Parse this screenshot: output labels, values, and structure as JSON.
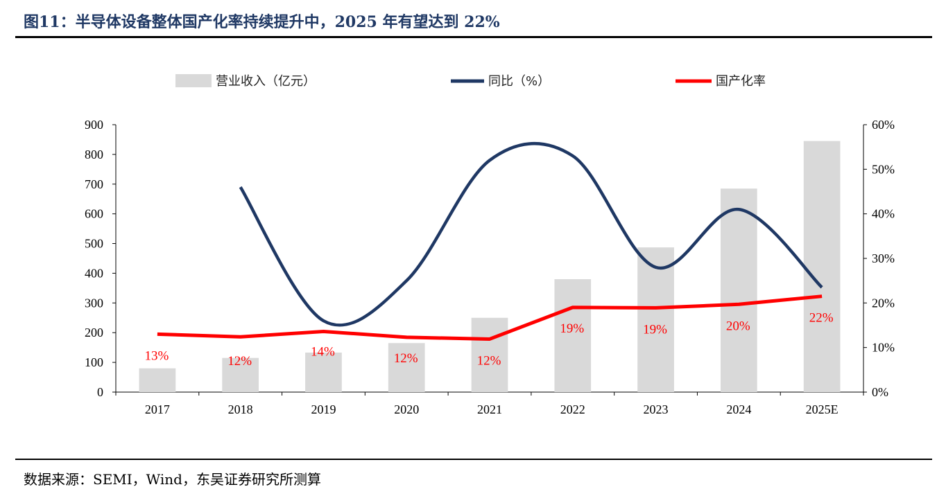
{
  "header": {
    "title": "图11：半导体设备整体国产化率持续提升中，2025 年有望达到 22%"
  },
  "footer": {
    "source": "数据来源：SEMI，Wind，东吴证券研究所测算"
  },
  "colors": {
    "bar": "#d9d9d9",
    "yoy": "#1f3864",
    "localization": "#ff0000",
    "title": "#1f3864"
  },
  "chart_data": {
    "type": "bar",
    "categories": [
      "2017",
      "2018",
      "2019",
      "2020",
      "2021",
      "2022",
      "2023",
      "2024",
      "2025E"
    ],
    "series": [
      {
        "name": "营业收入（亿元）",
        "type": "bar",
        "axis": "left",
        "values": [
          80,
          115,
          133,
          165,
          250,
          380,
          487,
          685,
          845
        ]
      },
      {
        "name": "同比（%）",
        "type": "line",
        "axis": "right",
        "smooth": true,
        "values": [
          null,
          46,
          16,
          25,
          52,
          53,
          28,
          41,
          23.5
        ]
      },
      {
        "name": "国产化率",
        "type": "line",
        "axis": "right",
        "values": [
          13,
          12.4,
          13.6,
          12.3,
          11.9,
          19,
          18.9,
          19.7,
          21.5
        ],
        "labels": [
          "13%",
          "12%",
          "14%",
          "12%",
          "12%",
          "19%",
          "19%",
          "20%",
          "22%"
        ]
      }
    ],
    "y_left": {
      "min": 0,
      "max": 900,
      "ticks": [
        "0",
        "100",
        "200",
        "300",
        "400",
        "500",
        "600",
        "700",
        "800",
        "900"
      ]
    },
    "y_right": {
      "min": 0,
      "max": 60,
      "ticks": [
        "0%",
        "10%",
        "20%",
        "30%",
        "40%",
        "50%",
        "60%"
      ]
    },
    "legend": {
      "position": "top-center"
    },
    "grid": false
  }
}
